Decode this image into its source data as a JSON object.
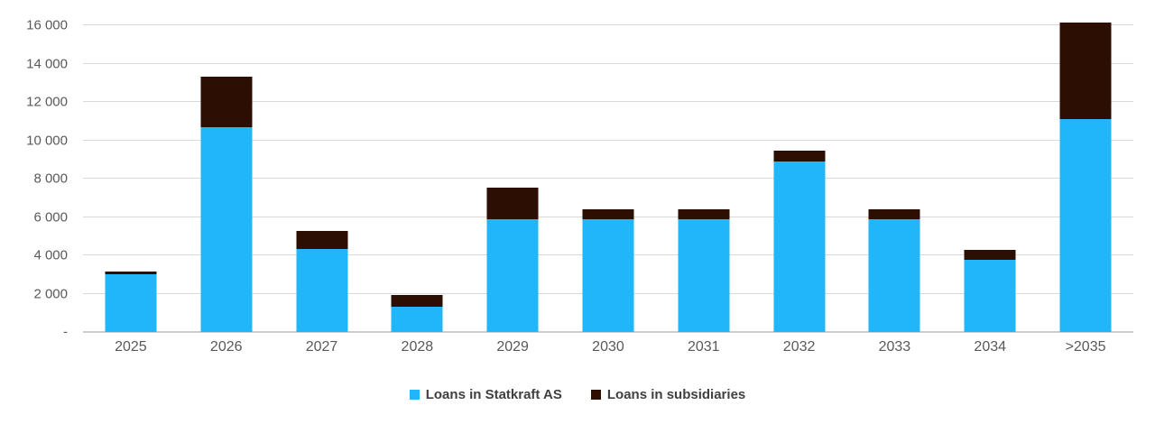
{
  "chart_data": {
    "type": "bar",
    "stacked": true,
    "title": "",
    "xlabel": "",
    "ylabel": "",
    "categories": [
      "2025",
      "2026",
      "2027",
      "2028",
      "2029",
      "2030",
      "2031",
      "2032",
      "2033",
      "2034",
      ">2035"
    ],
    "series": [
      {
        "name": "Loans in Statkraft AS",
        "color": "#21B6F9",
        "values": [
          3000,
          10670,
          4310,
          1320,
          5900,
          5900,
          5900,
          8880,
          5900,
          3760,
          11100
        ]
      },
      {
        "name": "Loans in subsidiaries",
        "color": "#2D0E02",
        "values": [
          160,
          2660,
          980,
          600,
          1610,
          520,
          520,
          580,
          520,
          520,
          5060
        ]
      }
    ],
    "ylim": [
      0,
      16000
    ],
    "ytick_interval": 2000,
    "ytick_labels": [
      "-",
      "2 000",
      "4 000",
      "6 000",
      "8 000",
      "10 000",
      "12 000",
      "14 000",
      "16 000"
    ],
    "grid": true,
    "legend_position": "bottom"
  },
  "colors": {
    "background": "#FFFFFF",
    "gridline": "#D9D9D9",
    "axis_line": "#CDCDCD",
    "axis_text": "#595959",
    "legend_text": "#404040"
  }
}
